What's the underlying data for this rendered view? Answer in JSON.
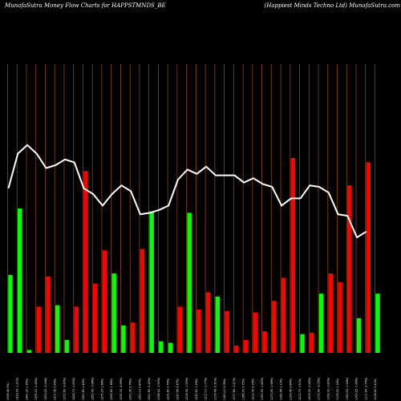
{
  "header": {
    "left": "MunafaSutra  Money Flow  Charts for HAPPSTMNDS_BE",
    "right": "(Happiest Minds Techno  Ltd) MunafaSutra.com"
  },
  "colors": {
    "background": "#000000",
    "grid": "#8b4513",
    "up": "#00ff00",
    "down": "#ff0000",
    "line": "#ffffff"
  },
  "chart_data": {
    "type": "bar",
    "title": "MunafaSutra  Money Flow  Charts for HAPPSTMNDS_BE",
    "grid": true,
    "x_labels": [
      "1339.45 0%)",
      "1323.30 -1.21%)",
      "1341.20 1.35%)",
      "1335.20 -0.45%)",
      "1305.25 -2.24%)",
      "1317.35 0.93%)",
      "1272.60 -3.40%)",
      "1249.70 -1.80%)",
      "1267.80 1.45%)",
      "1255.40 -0.98%)",
      "1275.25 1.58%)",
      "1292.60 1.36%)",
      "1232.00 -4.69%)",
      "1241.35 0.76%)",
      "1252.10 0.87%)",
      "1221.80 -2.42%)",
      "1198.40 -1.92%)",
      "1231.80 2.79%)",
      "1237.55 0.47%)",
      "1218.35 -1.55%)",
      "1232.90 1.19%)",
      "1211.10 -1.77%)",
      "1179.45 -2.61%)",
      "1180.10 0.06%)",
      "1177.65 -0.21%)",
      "1186.50 0.75%)",
      "1212.05 2.15%)",
      "1190.00 -1.82%)",
      "1170.05 -1.68%)",
      "1182.95 1.10%)",
      "1193.45 0.89%)",
      "1212.70 1.61%)",
      "1209.30 -0.28%)",
      "1172.40 -3.05%)",
      "1163.00 -0.80%)",
      "1176.30 1.14%)",
      "1160.50 -1.34%)",
      "1143.25 -1.49%)",
      "1111.90 -2.74%)",
      "1116.50 0.41%)"
    ],
    "bars": [
      {
        "value": 27,
        "dir": "up"
      },
      {
        "value": 50,
        "dir": "up"
      },
      {
        "value": 1,
        "dir": "up"
      },
      {
        "value": 16,
        "dir": "down"
      },
      {
        "value": 26.5,
        "dir": "down"
      },
      {
        "value": 16.5,
        "dir": "up"
      },
      {
        "value": 4.5,
        "dir": "up"
      },
      {
        "value": 16,
        "dir": "down"
      },
      {
        "value": 63,
        "dir": "down"
      },
      {
        "value": 24,
        "dir": "down"
      },
      {
        "value": 35.5,
        "dir": "down"
      },
      {
        "value": 27.5,
        "dir": "up"
      },
      {
        "value": 9.5,
        "dir": "up"
      },
      {
        "value": 10.5,
        "dir": "down"
      },
      {
        "value": 36,
        "dir": "down"
      },
      {
        "value": 49,
        "dir": "up"
      },
      {
        "value": 4,
        "dir": "up"
      },
      {
        "value": 3.5,
        "dir": "up"
      },
      {
        "value": 16,
        "dir": "down"
      },
      {
        "value": 48.5,
        "dir": "up"
      },
      {
        "value": 15,
        "dir": "down"
      },
      {
        "value": 21,
        "dir": "down"
      },
      {
        "value": 19.5,
        "dir": "up"
      },
      {
        "value": 14.5,
        "dir": "down"
      },
      {
        "value": 2.5,
        "dir": "down"
      },
      {
        "value": 4.5,
        "dir": "down"
      },
      {
        "value": 14,
        "dir": "down"
      },
      {
        "value": 7.5,
        "dir": "down"
      },
      {
        "value": 18,
        "dir": "down"
      },
      {
        "value": 26,
        "dir": "down"
      },
      {
        "value": 67.5,
        "dir": "down"
      },
      {
        "value": 6.5,
        "dir": "up"
      },
      {
        "value": 7,
        "dir": "down"
      },
      {
        "value": 20.5,
        "dir": "up"
      },
      {
        "value": 27.5,
        "dir": "down"
      },
      {
        "value": 24.5,
        "dir": "down"
      },
      {
        "value": 58,
        "dir": "down"
      },
      {
        "value": 12,
        "dir": "up"
      },
      {
        "value": 66,
        "dir": "down"
      },
      {
        "value": 20.5,
        "dir": "up"
      }
    ],
    "line_values": [
      1339.45,
      1323.3,
      1341.2,
      1335.2,
      1305.25,
      1317.35,
      1272.6,
      1249.7,
      1267.8,
      1255.4,
      1275.25,
      1292.6,
      1232.0,
      1241.35,
      1252.1,
      1221.8,
      1198.4,
      1231.8,
      1237.55,
      1218.35,
      1232.9,
      1211.1,
      1179.45,
      1180.1,
      1177.65,
      1186.5,
      1212.05,
      1190.0,
      1170.05,
      1182.95,
      1193.45,
      1212.7,
      1209.3,
      1172.4,
      1163.0,
      1176.3,
      1160.5,
      1143.25,
      1111.9,
      1116.5
    ],
    "line_path": [
      [
        0,
        57
      ],
      [
        1,
        69
      ],
      [
        2,
        72
      ],
      [
        3,
        69
      ],
      [
        4,
        64
      ],
      [
        5,
        65
      ],
      [
        6,
        67
      ],
      [
        7,
        66
      ],
      [
        8,
        57
      ],
      [
        9,
        55
      ],
      [
        10,
        51
      ],
      [
        11,
        55
      ],
      [
        12,
        58
      ],
      [
        13,
        56
      ],
      [
        14,
        48
      ],
      [
        15,
        48.5
      ],
      [
        16,
        49.5
      ],
      [
        17,
        51
      ],
      [
        18,
        60
      ],
      [
        19,
        63.5
      ],
      [
        20,
        62
      ],
      [
        21,
        64.5
      ],
      [
        22,
        61.5
      ],
      [
        23,
        61.5
      ],
      [
        24,
        61.5
      ],
      [
        25,
        59
      ],
      [
        26,
        60.5
      ],
      [
        27,
        58.5
      ],
      [
        28,
        57.5
      ],
      [
        29,
        51
      ],
      [
        30,
        53.5
      ],
      [
        31,
        53.5
      ],
      [
        32,
        58
      ],
      [
        33,
        57.5
      ],
      [
        34,
        55.5
      ],
      [
        35,
        48
      ],
      [
        36,
        47.5
      ],
      [
        37,
        40
      ],
      [
        38,
        42
      ]
    ],
    "ylim": [
      0,
      100
    ]
  }
}
